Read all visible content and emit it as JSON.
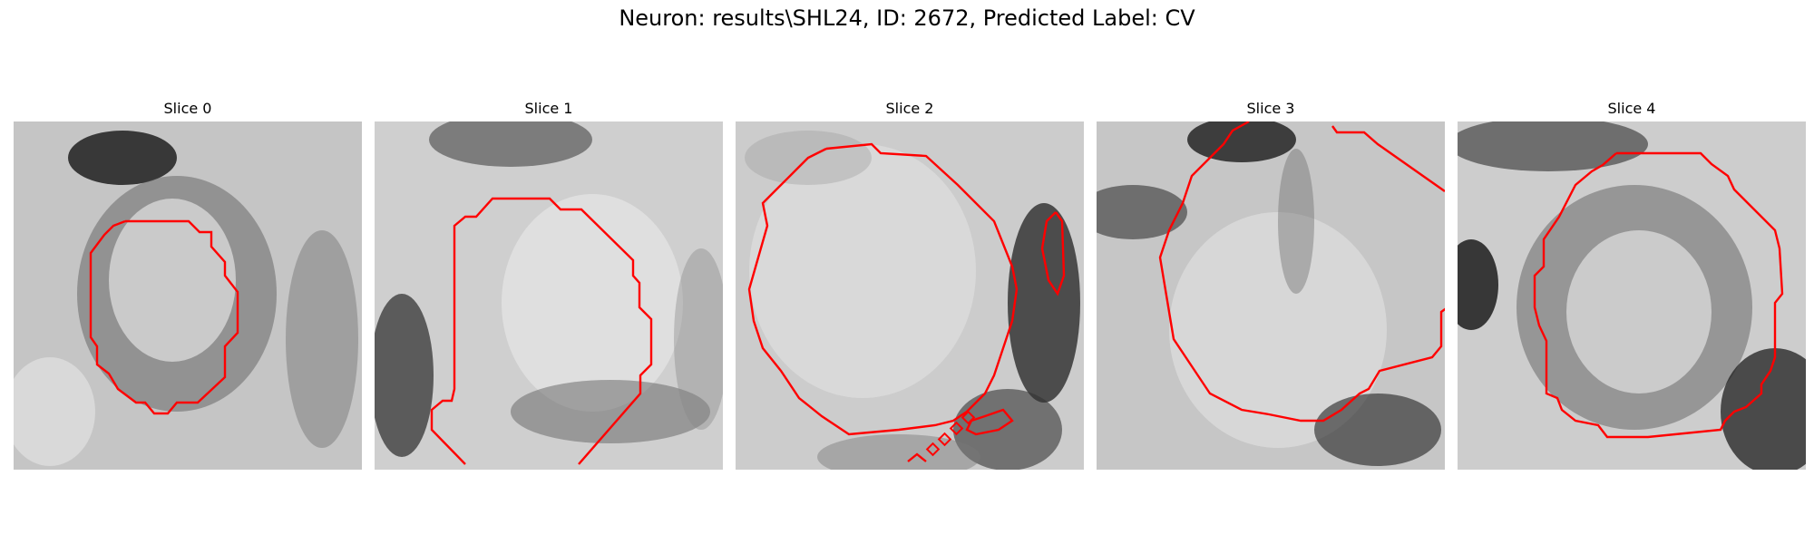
{
  "figure": {
    "title": "Neuron: results\\SHL24, ID: 2672, Predicted Label: CV"
  },
  "panels": [
    {
      "title": "Slice 0"
    },
    {
      "title": "Slice 1"
    },
    {
      "title": "Slice 2"
    },
    {
      "title": "Slice 3"
    },
    {
      "title": "Slice 4"
    }
  ],
  "colors": {
    "contour": "#ff0000",
    "background": "#ffffff"
  }
}
